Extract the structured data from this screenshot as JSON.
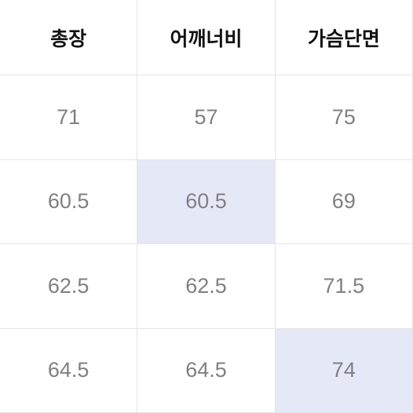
{
  "table": {
    "type": "table",
    "columns": [
      "총장",
      "어깨너비",
      "가슴단면"
    ],
    "rows": [
      [
        "71",
        "57",
        "75"
      ],
      [
        "60.5",
        "60.5",
        "69"
      ],
      [
        "62.5",
        "62.5",
        "71.5"
      ],
      [
        "64.5",
        "64.5",
        "74"
      ]
    ],
    "highlights": [
      {
        "row": 1,
        "col": 1
      },
      {
        "row": 3,
        "col": 2
      }
    ],
    "colors": {
      "background": "#ffffff",
      "highlight_bg": "#e5e9f7",
      "border": "#e5e5e5",
      "header_text": "#111111",
      "data_text": "#808080"
    },
    "fontsize": {
      "header": 25,
      "data": 27
    },
    "fontweight": {
      "header": 700,
      "data": 400
    },
    "cell_heights": {
      "header": 96,
      "data": 107.5
    }
  }
}
